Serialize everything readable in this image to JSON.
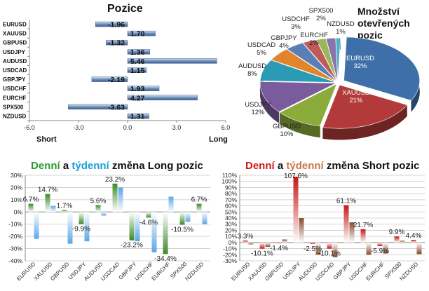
{
  "colors": {
    "long_green": "#3a8a28",
    "short_red": "#c41717",
    "weekly_blue": "#5aa6e8",
    "weekly_brown": "#8a4a2c",
    "bar_steel": "#6f8fb8",
    "title_green": "#2b9c2b",
    "title_red": "#d01a1a",
    "title_blue": "#1aa0d8",
    "title_orange": "#c8784a"
  },
  "chart_data": [
    {
      "type": "bar",
      "orientation": "horizontal",
      "title": "Pozice",
      "categories": [
        "EURUSD",
        "XAUUSD",
        "GBPUSD",
        "USDJPY",
        "AUDUSD",
        "USDCAD",
        "GBPJPY",
        "USDCHF",
        "EURCHF",
        "SPX500",
        "NZDUSD"
      ],
      "values": [
        -1.96,
        1.7,
        -1.32,
        1.36,
        5.46,
        1.15,
        -2.19,
        1.93,
        4.27,
        -3.63,
        1.31
      ],
      "value_labels": [
        "-1.96",
        "1.70",
        "-1.32",
        "1.36",
        "5.46",
        "1.15",
        "-2.19",
        "1.93",
        "4.27",
        "-3.63",
        "1.31"
      ],
      "xlim": [
        -6,
        6
      ],
      "ticks": [
        -6,
        -3,
        0,
        3,
        6
      ],
      "tick_labels": [
        "-6.0",
        "-3.0",
        "0.0",
        "3.0",
        "6.0"
      ],
      "label_short": "Short",
      "label_long": "Long",
      "grid": false
    },
    {
      "type": "pie",
      "title_lines": [
        "Množství",
        "otevřených",
        "pozic"
      ],
      "slices": [
        {
          "name": "EURUSD",
          "value": 32,
          "label": "32%",
          "color": "#3e6fa8"
        },
        {
          "name": "XAUUSD",
          "value": 21,
          "label": "21%",
          "color": "#b33a3a"
        },
        {
          "name": "GBPUSD",
          "value": 10,
          "label": "10%",
          "color": "#8bab3a"
        },
        {
          "name": "USDJPY",
          "value": 12,
          "label": "12%",
          "color": "#7a5b9c"
        },
        {
          "name": "AUDUSD",
          "value": 8,
          "label": "8%",
          "color": "#2b9bb5"
        },
        {
          "name": "USDCAD",
          "value": 5,
          "label": "5%",
          "color": "#e0852b"
        },
        {
          "name": "GBPJPY",
          "value": 4,
          "label": "4%",
          "color": "#5a7fb5"
        },
        {
          "name": "USDCHF",
          "value": 3,
          "label": "3%",
          "color": "#c05a5a"
        },
        {
          "name": "EURCHF",
          "value": 2,
          "label": "2%",
          "color": "#9ab85a"
        },
        {
          "name": "SPX500",
          "value": 2,
          "label": "2%",
          "color": "#8a74ad"
        },
        {
          "name": "NZDUSD",
          "value": 1,
          "label": "1%",
          "color": "#4bb0c8"
        }
      ]
    },
    {
      "type": "bar",
      "title_parts": [
        "Denní",
        " a ",
        "týdenní",
        " změna Long pozic"
      ],
      "categories": [
        "EURUSD",
        "XAUUSD",
        "GBPUSD",
        "USDJPY",
        "AUDUSD",
        "USDCAD",
        "GBPJPY",
        "USDCHF",
        "EURCHF",
        "SPX500",
        "NZDUSD"
      ],
      "series": [
        {
          "key": "daily",
          "values": [
            6.7,
            14.7,
            1.7,
            -9.9,
            5.6,
            23.2,
            -23.2,
            -4.6,
            -34.4,
            -10.5,
            6.7
          ]
        },
        {
          "key": "weekly",
          "values": [
            -22.0,
            5.0,
            -26.0,
            -24.0,
            -3.0,
            20.0,
            -24.0,
            -33.0,
            12.5,
            -8.0,
            -10.0
          ]
        }
      ],
      "labels": [
        "6.7%",
        "14.7%",
        "1.7%",
        "-9.9%",
        "5.6%",
        "23.2%",
        "-23.2%",
        "-4.6%",
        "-34.4%",
        "-10.5%",
        "6.7%"
      ],
      "ylim": [
        -40,
        30
      ],
      "yticks": [
        -40,
        -30,
        -20,
        -10,
        0,
        10,
        20,
        30
      ],
      "ytick_labels": [
        "-40%",
        "-30%",
        "-20%",
        "-10%",
        "0%",
        "10%",
        "20%",
        "30%"
      ],
      "grid": true
    },
    {
      "type": "bar",
      "title_parts": [
        "Denní",
        " a ",
        "týdenní",
        " změna Short pozic"
      ],
      "categories": [
        "EURUSD",
        "XAUUSD",
        "GBPUSD",
        "USDJPY",
        "AUDUSD",
        "USDCAD",
        "GBPJPY",
        "USDCHF",
        "EURCHF",
        "SPX500",
        "NZDUSD"
      ],
      "series": [
        {
          "key": "daily",
          "values": [
            3.3,
            -10.1,
            -1.4,
            107.6,
            -2.5,
            -10.1,
            61.1,
            21.7,
            -5.9,
            9.9,
            4.4
          ]
        },
        {
          "key": "weekly",
          "values": [
            -3.0,
            -7.0,
            5.0,
            40.0,
            -20.0,
            -24.0,
            33.0,
            -20.0,
            -18.0,
            3.0,
            -19.0
          ]
        }
      ],
      "labels": [
        "3.3%",
        "-10.1%",
        "-1.4%",
        "107.6%",
        "-2.5%",
        "-10.1%",
        "61.1%",
        "21.7%",
        "-5.9%",
        "9.9%",
        "4.4%"
      ],
      "ylim": [
        -30,
        110
      ],
      "yticks": [
        -30,
        -20,
        -10,
        0,
        10,
        20,
        30,
        40,
        50,
        60,
        70,
        80,
        90,
        100,
        110
      ],
      "ytick_labels": [
        "-30%",
        "-20%",
        "-10%",
        "0%",
        "10%",
        "20%",
        "30%",
        "40%",
        "50%",
        "60%",
        "70%",
        "80%",
        "90%",
        "100%",
        "110%"
      ],
      "grid": true
    }
  ]
}
